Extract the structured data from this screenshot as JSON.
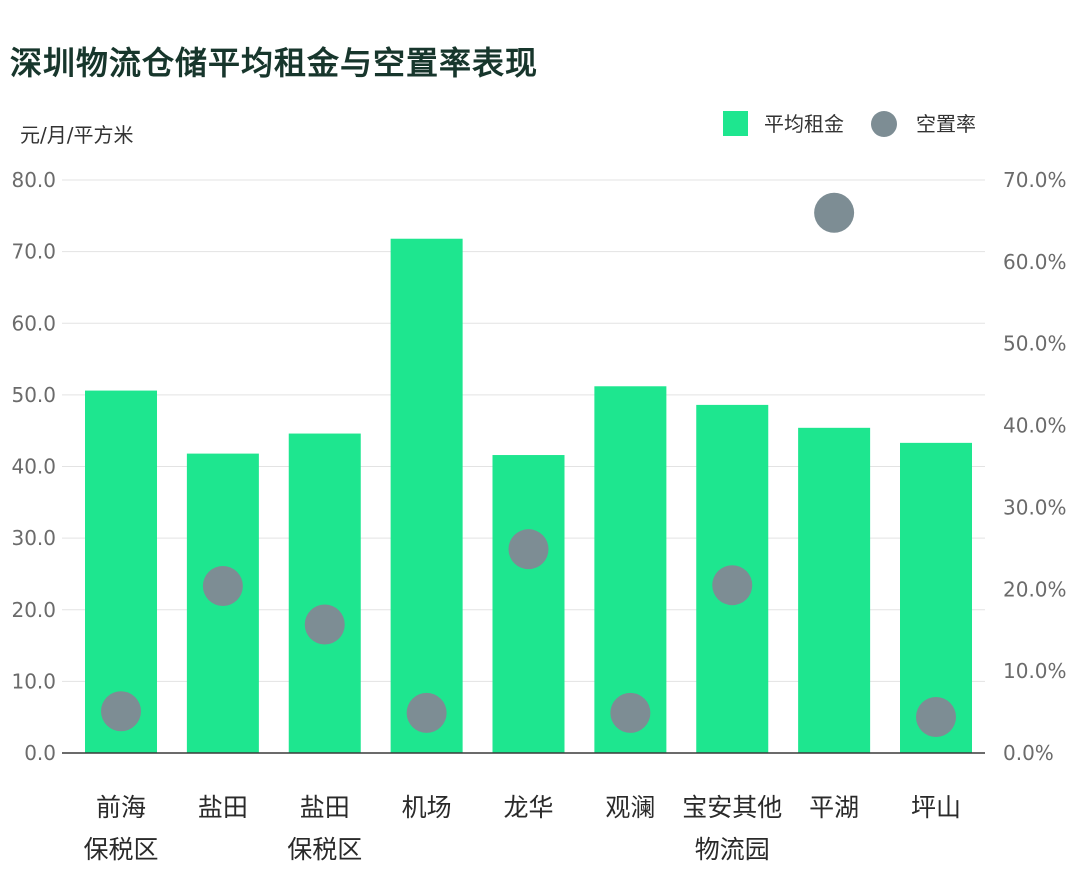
{
  "chart_data": {
    "type": "bar",
    "title": "深圳物流仓储平均租金与空置率表现",
    "ylabel": "元/月/平方米",
    "ylim": [
      0,
      80
    ],
    "y2lim": [
      0,
      70
    ],
    "yticks": [
      "0.0",
      "10.0",
      "20.0",
      "30.0",
      "40.0",
      "50.0",
      "60.0",
      "70.0",
      "80.0"
    ],
    "y2ticks": [
      "0.0%",
      "10.0%",
      "20.0%",
      "30.0%",
      "40.0%",
      "50.0%",
      "60.0%",
      "70.0%"
    ],
    "categories": [
      [
        "前海",
        "保税区"
      ],
      [
        "盐田"
      ],
      [
        "盐田",
        "保税区"
      ],
      [
        "机场"
      ],
      [
        "龙华"
      ],
      [
        "观澜"
      ],
      [
        "宝安其他",
        "物流园"
      ],
      [
        "平湖"
      ],
      [
        "坪山"
      ]
    ],
    "series": [
      {
        "name": "平均租金",
        "type": "bar",
        "axis": "left",
        "color": "#1ee68f",
        "values": [
          50.6,
          41.8,
          44.6,
          71.8,
          41.6,
          51.2,
          48.6,
          45.4,
          43.3
        ]
      },
      {
        "name": "空置率",
        "type": "scatter",
        "axis": "right",
        "color": "#7d8d94",
        "values": [
          5.1,
          20.4,
          15.7,
          4.9,
          24.9,
          4.9,
          20.5,
          66.0,
          4.4
        ]
      }
    ],
    "grid": true,
    "legend": "top-right"
  }
}
